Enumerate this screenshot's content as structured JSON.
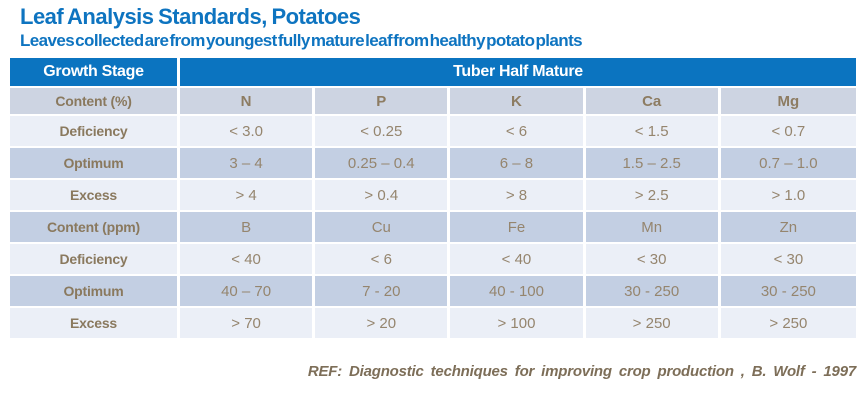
{
  "header": {
    "title": "Leaf Analysis Standards, Potatoes",
    "subtitle": "Leaves collected are from youngest fully mature leaf from healthy potato plants",
    "accent_color": "#0e74c0"
  },
  "table": {
    "corner_label": "Growth Stage",
    "span_label": "Tuber Half Mature",
    "colors": {
      "header_bg": "#0b74c0",
      "header_text": "#ffffff",
      "subheader_row_bg": "#cdd4e2",
      "medium_row_bg": "#c3cfe3",
      "light_row_bg": "#ebeff7",
      "label_text": "#8a795e",
      "value_text": "#95856e"
    },
    "rows": [
      {
        "label": "Content (%)",
        "cells": [
          "N",
          "P",
          "K",
          "Ca",
          "Mg"
        ]
      },
      {
        "label": "Deficiency",
        "cells": [
          "< 3.0",
          "< 0.25",
          "< 6",
          "< 1.5",
          "< 0.7"
        ]
      },
      {
        "label": "Optimum",
        "cells": [
          "3 – 4",
          "0.25 – 0.4",
          "6 – 8",
          "1.5 – 2.5",
          "0.7 – 1.0"
        ]
      },
      {
        "label": "Excess",
        "cells": [
          "> 4",
          "> 0.4",
          "> 8",
          "> 2.5",
          "> 1.0"
        ]
      },
      {
        "label": "Content (ppm)",
        "cells": [
          "B",
          "Cu",
          "Fe",
          "Mn",
          "Zn"
        ]
      },
      {
        "label": "Deficiency",
        "cells": [
          "< 40",
          "< 6",
          "< 40",
          "< 30",
          "< 30"
        ]
      },
      {
        "label": "Optimum",
        "cells": [
          "40 – 70",
          "7 - 20",
          "40 - 100",
          "30 - 250",
          "30 - 250"
        ]
      },
      {
        "label": "Excess",
        "cells": [
          "> 70",
          "> 20",
          "> 100",
          "> 250",
          "> 250"
        ]
      }
    ]
  },
  "footer": {
    "reference": "REF: Diagnostic techniques for improving crop production , B. Wolf - 1997"
  }
}
